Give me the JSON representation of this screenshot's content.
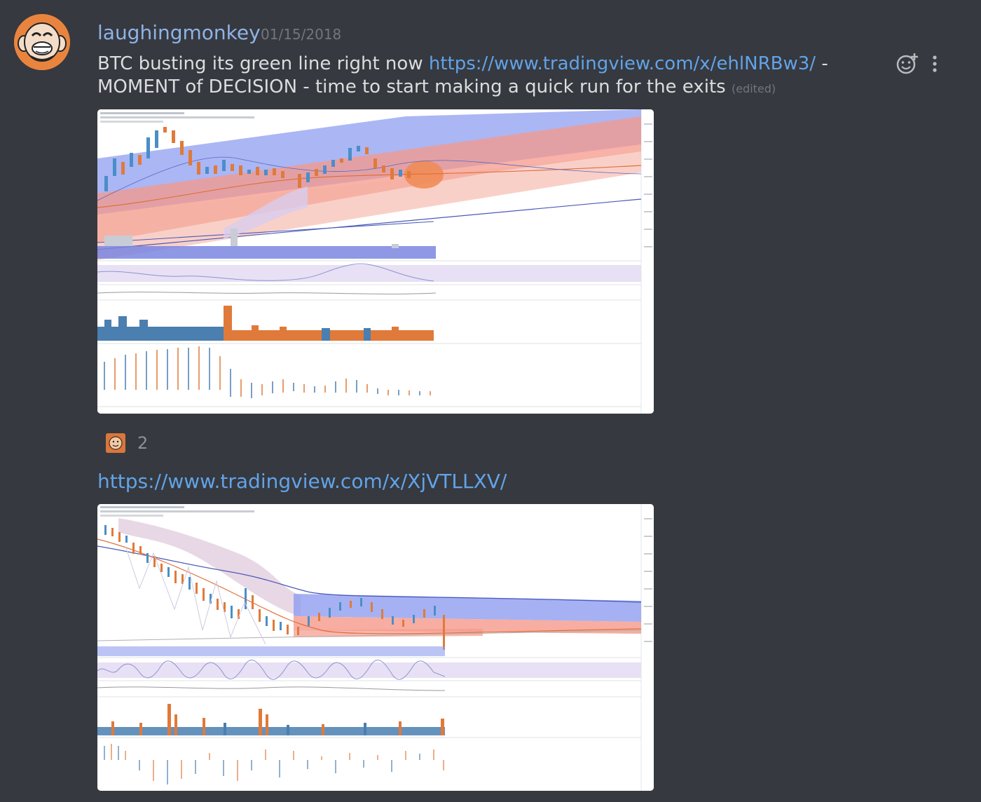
{
  "message": {
    "author": "laughingmonkey",
    "timestamp": "01/15/2018",
    "text_before_link": "BTC busting its green line right now ",
    "link1": "https://www.tradingview.com/x/ehlNRBw3/",
    "text_after_link": " - MOMENT of DECISION - time to start making a quick run for the exits",
    "edited_label": "(edited)",
    "link2": "https://www.tradingview.com/x/XjVTLLXV/"
  },
  "reaction": {
    "count": "2"
  },
  "icons": {
    "add_reaction": "add-reaction-icon",
    "more": "more-options-icon"
  },
  "colors": {
    "background": "#36393f",
    "author": "#8fb3e6",
    "link": "#62a3e8",
    "text": "#dcddde",
    "muted": "#72767d",
    "avatar": "#e9843f"
  }
}
